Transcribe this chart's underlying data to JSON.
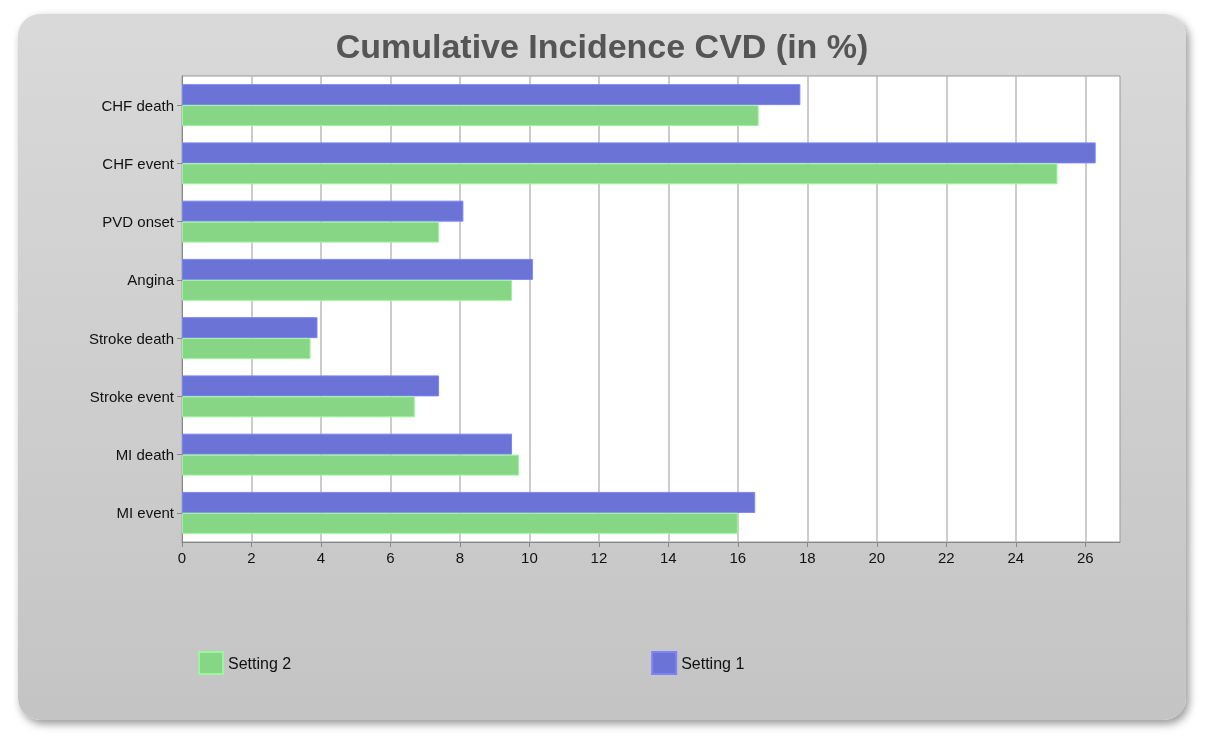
{
  "chart_data": {
    "type": "bar",
    "orientation": "horizontal",
    "title": "Cumulative Incidence CVD (in %)",
    "categories": [
      "CHF death",
      "CHF event",
      "PVD onset",
      "Angina",
      "Stroke death",
      "Stroke event",
      "MI death",
      "MI event"
    ],
    "series": [
      {
        "name": "Setting 2",
        "color": "#86d686",
        "values": [
          16.6,
          25.2,
          7.4,
          9.5,
          3.7,
          6.7,
          9.7,
          16.0
        ]
      },
      {
        "name": "Setting 1",
        "color": "#6b73d6",
        "values": [
          17.8,
          26.3,
          8.1,
          10.1,
          3.9,
          7.4,
          9.5,
          16.5
        ]
      }
    ],
    "xlim": [
      0,
      27
    ],
    "xticks": [
      0,
      2,
      4,
      6,
      8,
      10,
      12,
      14,
      16,
      18,
      20,
      22,
      24,
      26
    ],
    "grid": "x",
    "legend": "bottom"
  }
}
